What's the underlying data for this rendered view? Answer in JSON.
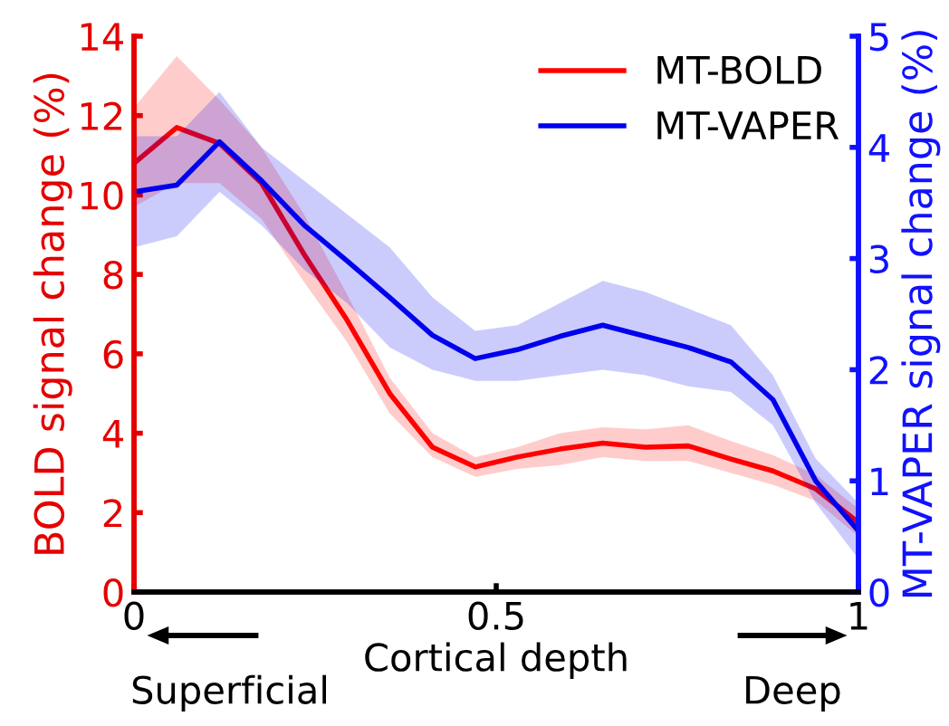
{
  "chart_data": {
    "type": "line",
    "xlabel": "Cortical depth",
    "ylabel": "BOLD signal change (%)",
    "y2label": "MT-VAPER signal change (%)",
    "x": [
      0,
      0.059,
      0.118,
      0.176,
      0.235,
      0.294,
      0.353,
      0.412,
      0.471,
      0.529,
      0.588,
      0.647,
      0.706,
      0.765,
      0.824,
      0.882,
      0.941,
      1
    ],
    "series": [
      {
        "name": "MT-BOLD",
        "color": "#ff0000",
        "values": [
          10.8,
          11.7,
          11.3,
          10.3,
          8.5,
          6.85,
          5.0,
          3.65,
          3.15,
          3.4,
          3.6,
          3.75,
          3.65,
          3.68,
          3.35,
          3.05,
          2.6,
          1.75
        ],
        "lower": [
          9.7,
          10.3,
          10.3,
          9.4,
          7.8,
          6.3,
          4.5,
          3.4,
          2.9,
          3.1,
          3.2,
          3.4,
          3.3,
          3.3,
          3.0,
          2.7,
          2.3,
          1.4
        ],
        "upper": [
          12.2,
          13.5,
          12.4,
          11.2,
          9.5,
          7.5,
          5.4,
          4.0,
          3.4,
          3.65,
          4.0,
          4.15,
          4.1,
          4.2,
          3.8,
          3.45,
          2.95,
          2.1
        ]
      },
      {
        "name": "MT-VAPER",
        "color": "#0000ee",
        "axis": "y2",
        "values": [
          3.6,
          3.66,
          4.05,
          3.7,
          3.3,
          2.98,
          2.65,
          2.31,
          2.1,
          2.18,
          2.3,
          2.4,
          2.3,
          2.2,
          2.07,
          1.73,
          1.0,
          0.55
        ],
        "lower": [
          3.1,
          3.2,
          3.6,
          3.3,
          2.9,
          2.6,
          2.2,
          2.0,
          1.9,
          1.9,
          1.95,
          2.0,
          1.95,
          1.85,
          1.8,
          1.5,
          0.8,
          0.3
        ],
        "upper": [
          4.1,
          4.1,
          4.5,
          4.0,
          3.7,
          3.4,
          3.1,
          2.65,
          2.35,
          2.4,
          2.6,
          2.8,
          2.7,
          2.55,
          2.4,
          1.95,
          1.2,
          0.8
        ]
      }
    ],
    "xlim": [
      0,
      1
    ],
    "xticks": [
      0,
      0.5,
      1
    ],
    "ylim": [
      0,
      14
    ],
    "yticks": [
      0,
      2,
      4,
      6,
      8,
      10,
      12,
      14
    ],
    "y2lim": [
      0,
      5
    ],
    "y2ticks": [
      0,
      1,
      2,
      3,
      4,
      5
    ],
    "legend": "top right",
    "grid": false,
    "line_style": "solid",
    "marker": "none",
    "annotations": [
      "Superficial",
      "Deep"
    ]
  }
}
